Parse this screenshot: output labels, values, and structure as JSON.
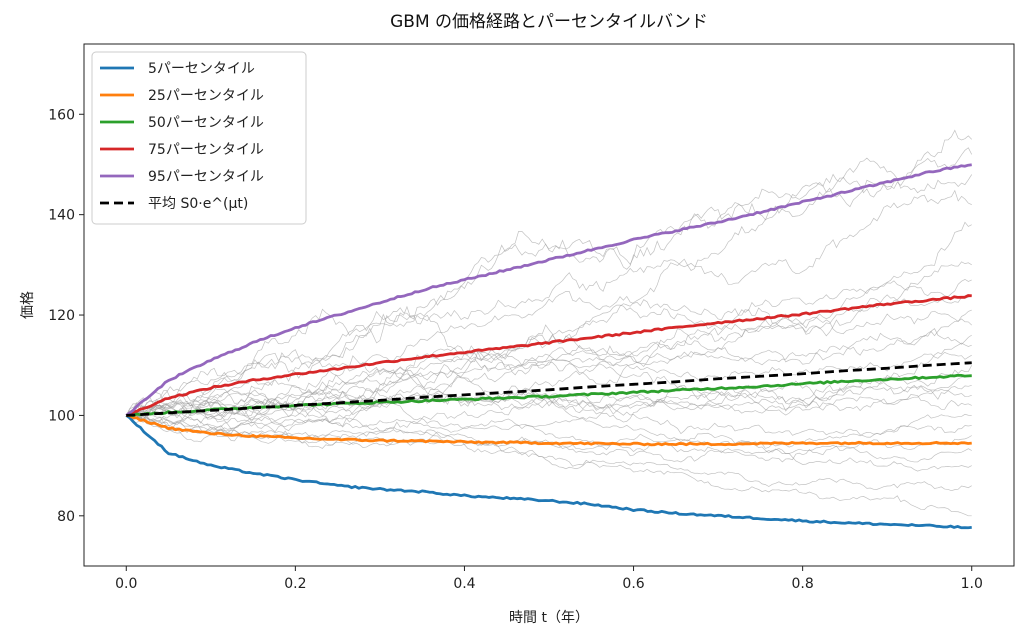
{
  "chart_data": {
    "type": "line",
    "title": "GBM の価格経路とパーセンタイルバンド",
    "xlabel": "時間 t（年）",
    "ylabel": "価格",
    "xlim": [
      -0.05,
      1.05
    ],
    "ylim": [
      70,
      174
    ],
    "xticks": [
      0.0,
      0.2,
      0.4,
      0.6,
      0.8,
      1.0
    ],
    "xtick_labels": [
      "0.0",
      "0.2",
      "0.4",
      "0.6",
      "0.8",
      "1.0"
    ],
    "yticks": [
      80,
      100,
      120,
      140,
      160
    ],
    "ytick_labels": [
      "80",
      "100",
      "120",
      "140",
      "160"
    ],
    "grid": false,
    "legend_position": "top-left",
    "x": [
      0.0,
      0.05,
      0.1,
      0.15,
      0.2,
      0.25,
      0.3,
      0.35,
      0.4,
      0.45,
      0.5,
      0.55,
      0.6,
      0.65,
      0.7,
      0.75,
      0.8,
      0.85,
      0.9,
      0.95,
      1.0
    ],
    "series": [
      {
        "name": "5パーセンタイル",
        "color": "#1f77b4",
        "style": "solid",
        "values": [
          100,
          92.5,
          90.0,
          88.5,
          87.2,
          86.0,
          85.3,
          84.8,
          84.0,
          83.5,
          83.0,
          82.3,
          81.2,
          80.5,
          80.0,
          79.5,
          79.0,
          78.6,
          78.3,
          78.0,
          77.6
        ]
      },
      {
        "name": "25パーセンタイル",
        "color": "#ff7f0e",
        "style": "solid",
        "values": [
          100,
          97.5,
          96.4,
          95.9,
          95.5,
          95.2,
          95.0,
          94.9,
          94.7,
          94.6,
          94.5,
          94.4,
          94.3,
          94.3,
          94.3,
          94.4,
          94.5,
          94.5,
          94.5,
          94.5,
          94.5
        ]
      },
      {
        "name": "50パーセンタイル",
        "color": "#2ca02c",
        "style": "solid",
        "values": [
          100,
          100.6,
          101.1,
          101.6,
          102.0,
          102.3,
          102.6,
          102.9,
          103.2,
          103.5,
          103.8,
          104.2,
          104.6,
          105.0,
          105.4,
          105.8,
          106.3,
          106.8,
          107.2,
          107.6,
          108.0
        ]
      },
      {
        "name": "75パーセンタイル",
        "color": "#d62728",
        "style": "solid",
        "values": [
          100,
          103.5,
          105.5,
          107.0,
          108.2,
          109.3,
          110.5,
          111.6,
          112.6,
          113.5,
          114.5,
          115.5,
          116.5,
          117.5,
          118.5,
          119.3,
          120.2,
          121.2,
          122.2,
          123.0,
          123.8
        ]
      },
      {
        "name": "95パーセンタイル",
        "color": "#9467bd",
        "style": "solid",
        "values": [
          100,
          107.0,
          111.0,
          114.5,
          117.5,
          120.0,
          122.5,
          125.0,
          127.0,
          129.0,
          131.0,
          133.0,
          135.0,
          136.8,
          138.5,
          140.5,
          142.5,
          144.5,
          146.5,
          148.5,
          150.0
        ]
      },
      {
        "name": "平均 S0·e^(μt)",
        "color": "#000000",
        "style": "dashed",
        "values": [
          100,
          100.5,
          101.0,
          101.5,
          102.0,
          102.5,
          103.0,
          103.6,
          104.1,
          104.6,
          105.1,
          105.7,
          106.2,
          106.7,
          107.3,
          107.8,
          108.3,
          108.9,
          109.4,
          110.0,
          110.5
        ]
      }
    ],
    "sample_paths": {
      "count": 25,
      "color": "#9a9a9a",
      "end_values": [
        155,
        152,
        148,
        142,
        138,
        130,
        127,
        124,
        121,
        118,
        116,
        114,
        112,
        110,
        108,
        106,
        104,
        102,
        100,
        98,
        96,
        93,
        90,
        86,
        80
      ],
      "max_values": [
        168,
        160,
        167,
        149,
        160,
        140,
        148,
        136,
        138,
        131,
        134,
        128,
        126,
        128,
        124,
        121,
        118,
        125,
        114,
        117,
        110,
        112,
        108,
        106,
        105
      ],
      "min_values": [
        98,
        95,
        92,
        90,
        94,
        88,
        90,
        86,
        92,
        84,
        88,
        82,
        90,
        80,
        86,
        78,
        84,
        80,
        82,
        79,
        84,
        77,
        80,
        78,
        75
      ]
    }
  }
}
